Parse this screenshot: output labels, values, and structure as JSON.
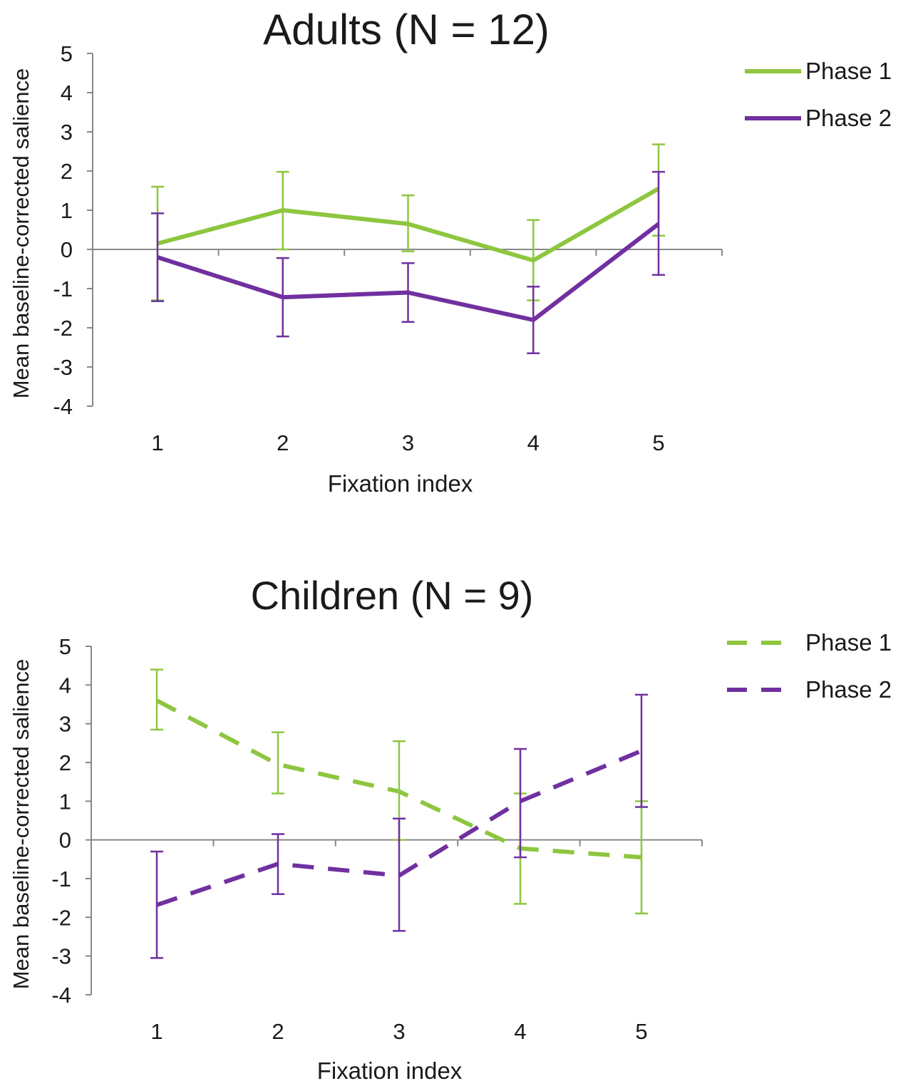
{
  "chart_data": [
    {
      "type": "line",
      "title": "Adults (N = 12)",
      "xlabel": "Fixation index",
      "ylabel": "Mean baseline-corrected salience",
      "categories": [
        "1",
        "2",
        "3",
        "4",
        "5"
      ],
      "ylim": [
        -4,
        5
      ],
      "yticks": [
        "5",
        "4",
        "3",
        "2",
        "1",
        "0",
        "-1",
        "-2",
        "-3",
        "-4"
      ],
      "line_style": "solid",
      "legend_position": "right",
      "series": [
        {
          "name": "Phase 1",
          "color": "#8dc63f",
          "values": [
            0.15,
            1.0,
            0.65,
            -0.28,
            1.55
          ],
          "err_low": [
            -1.3,
            0.0,
            -0.05,
            -1.3,
            0.35
          ],
          "err_high": [
            1.6,
            1.98,
            1.38,
            0.75,
            2.68
          ]
        },
        {
          "name": "Phase 2",
          "color": "#7030a0",
          "values": [
            -0.2,
            -1.22,
            -1.1,
            -1.8,
            0.65
          ],
          "err_low": [
            -1.32,
            -2.22,
            -1.85,
            -2.65,
            -0.65
          ],
          "err_high": [
            0.92,
            -0.22,
            -0.35,
            -0.95,
            1.98
          ]
        }
      ]
    },
    {
      "type": "line",
      "title": "Children (N = 9)",
      "xlabel": "Fixation index",
      "ylabel": "Mean baseline-corrected salience",
      "categories": [
        "1",
        "2",
        "3",
        "4",
        "5"
      ],
      "ylim": [
        -4,
        5
      ],
      "yticks": [
        "5",
        "4",
        "3",
        "2",
        "1",
        "0",
        "-1",
        "-2",
        "-3",
        "-4"
      ],
      "line_style": "dashed",
      "legend_position": "right",
      "series": [
        {
          "name": "Phase 1",
          "color": "#8dc63f",
          "values": [
            3.6,
            1.95,
            1.25,
            -0.22,
            -0.45
          ],
          "err_low": [
            2.85,
            1.2,
            0.0,
            -1.65,
            -1.9
          ],
          "err_high": [
            4.4,
            2.78,
            2.55,
            1.2,
            1.0
          ]
        },
        {
          "name": "Phase 2",
          "color": "#7030a0",
          "values": [
            -1.68,
            -0.62,
            -0.92,
            1.0,
            2.3
          ],
          "err_low": [
            -3.05,
            -1.4,
            -2.35,
            -0.45,
            0.85
          ],
          "err_high": [
            -0.3,
            0.15,
            0.55,
            2.35,
            3.75
          ]
        }
      ]
    }
  ]
}
